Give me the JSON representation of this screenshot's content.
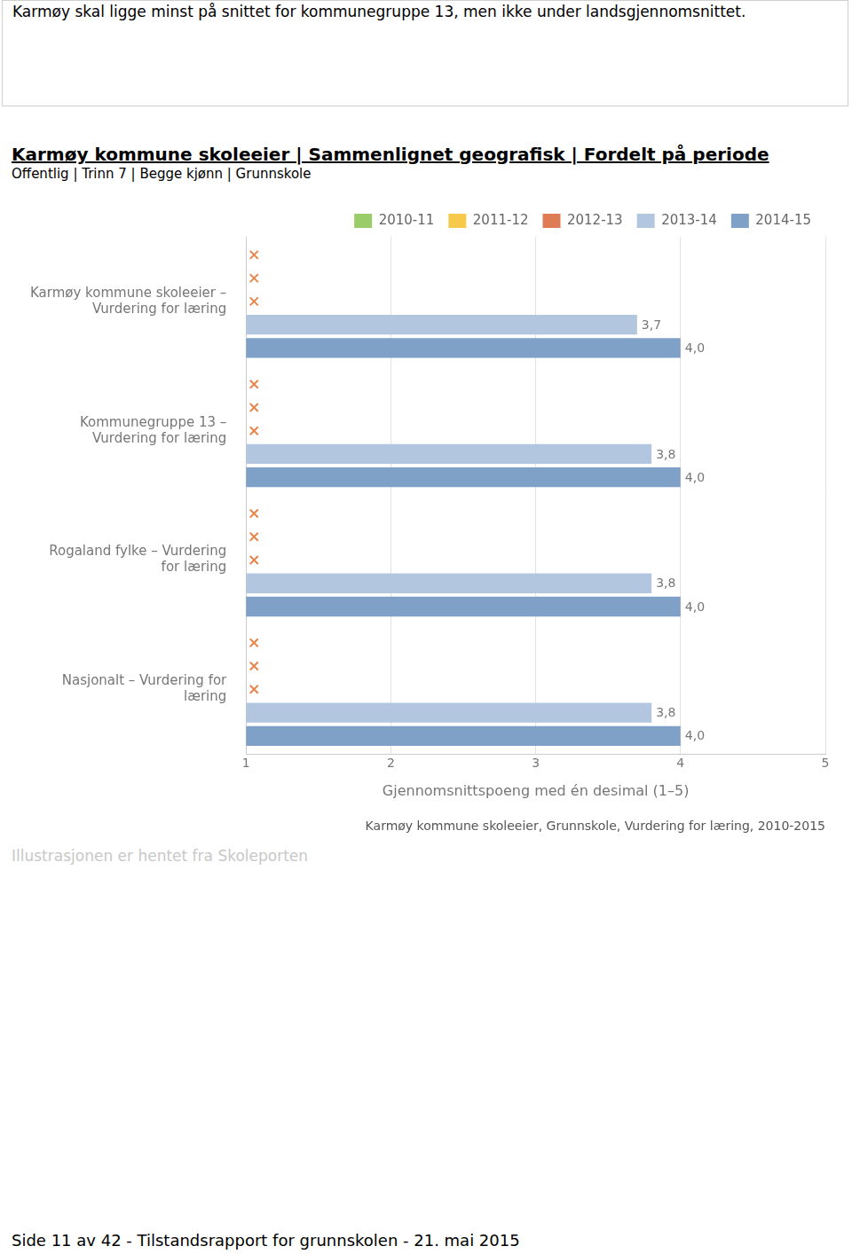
{
  "header_note": "Karmøy skal ligge minst på snittet for kommunegruppe 13, men ikke under landsgjennomsnittet.",
  "chart_data": {
    "type": "bar",
    "orientation": "horizontal",
    "title": "Karmøy kommune skoleeier | Sammenlignet geografisk | Fordelt på periode",
    "subtitle": "Offentlig | Trinn 7 | Begge kjønn | Grunnskole",
    "xlabel": "Gjennomsnittspoeng med én desimal (1–5)",
    "annotation": "Karmøy kommune skoleeier, Grunnskole, Vurdering for læring, 2010-2015",
    "categories": [
      "Karmøy kommune skoleeier – Vurdering for læring",
      "Kommunegruppe 13 – Vurdering for læring",
      "Rogaland fylke – Vurdering for læring",
      "Nasjonalt – Vurdering for læring"
    ],
    "series": [
      {
        "name": "2010-11",
        "color": "#9acd6a",
        "marker": "x",
        "values": [
          null,
          null,
          null,
          null
        ]
      },
      {
        "name": "2011-12",
        "color": "#f6c94a",
        "marker": "x",
        "values": [
          null,
          null,
          null,
          null
        ]
      },
      {
        "name": "2012-13",
        "color": "#de7c55",
        "marker": "x",
        "values": [
          null,
          null,
          null,
          null
        ]
      },
      {
        "name": "2013-14",
        "color": "#b3c6df",
        "values": [
          3.7,
          3.8,
          3.8,
          3.8
        ],
        "value_labels": [
          "3,7",
          "3,8",
          "3,8",
          "3,8"
        ]
      },
      {
        "name": "2014-15",
        "color": "#7fa1c8",
        "values": [
          4.0,
          4.0,
          4.0,
          4.0
        ],
        "value_labels": [
          "4,0",
          "4,0",
          "4,0",
          "4,0"
        ]
      }
    ],
    "xlim": [
      1,
      5
    ],
    "xticks": [
      1,
      2,
      3,
      4,
      5
    ],
    "grid": true,
    "legend": "top",
    "data_labels": true
  },
  "source_note": "Illustrasjonen er hentet fra Skoleporten",
  "footer": "Side 11 av 42 - Tilstandsrapport for grunnskolen - 21. mai 2015"
}
